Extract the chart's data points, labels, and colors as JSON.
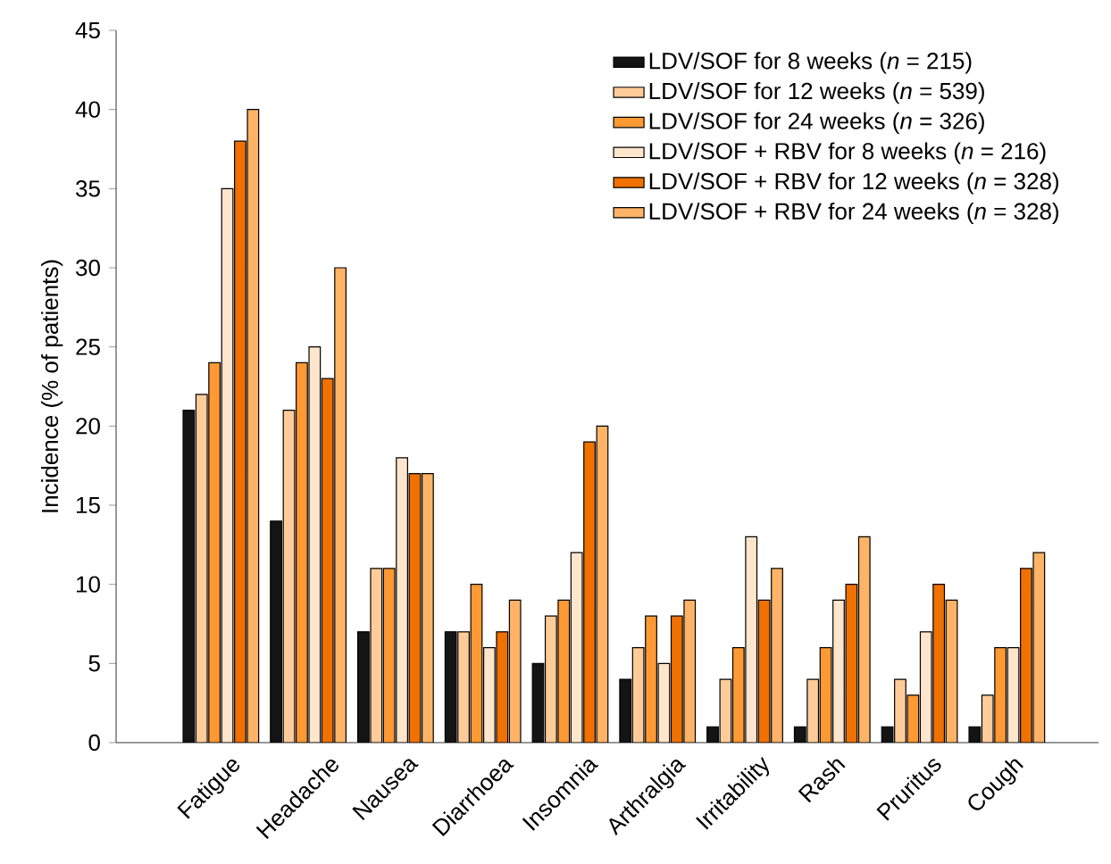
{
  "chart_data": {
    "type": "bar",
    "ylabel": "Incidence (% of patients)",
    "categories": [
      "Fatigue",
      "Headache",
      "Nausea",
      "Diarrhoea",
      "Insomnia",
      "Arthralgia",
      "Irritability",
      "Rash",
      "Pruritus",
      "Cough"
    ],
    "series": [
      {
        "name": "LDV/SOF for 8 weeks (*n* = 215)",
        "color": "#141414",
        "values": [
          21,
          14,
          7,
          7,
          5,
          4,
          1,
          1,
          1,
          1
        ]
      },
      {
        "name": "LDV/SOF for 12 weeks (*n* = 539)",
        "color": "#ffcc99",
        "values": [
          22,
          21,
          11,
          7,
          8,
          6,
          4,
          4,
          4,
          3
        ]
      },
      {
        "name": "LDV/SOF for 24 weeks (*n* = 326)",
        "color": "#ff9933",
        "values": [
          24,
          24,
          11,
          10,
          9,
          8,
          6,
          6,
          3,
          6
        ]
      },
      {
        "name": "LDV/SOF + RBV for 8 weeks (*n* = 216)",
        "color": "#ffe5cc",
        "values": [
          35,
          25,
          18,
          6,
          12,
          5,
          13,
          9,
          7,
          6
        ]
      },
      {
        "name": "LDV/SOF + RBV for 12 weeks (*n* = 328)",
        "color": "#f07000",
        "values": [
          38,
          23,
          17,
          7,
          19,
          8,
          9,
          10,
          10,
          11
        ]
      },
      {
        "name": "LDV/SOF + RBV for 24 weeks (*n* = 328)",
        "color": "#ffb366",
        "values": [
          40,
          30,
          17,
          9,
          20,
          9,
          11,
          13,
          9,
          12
        ]
      }
    ],
    "ylim": [
      0,
      45
    ],
    "yticks": [
      0,
      5,
      10,
      15,
      20,
      25,
      30,
      35,
      40,
      45
    ],
    "grid": false,
    "legend": "top right"
  }
}
